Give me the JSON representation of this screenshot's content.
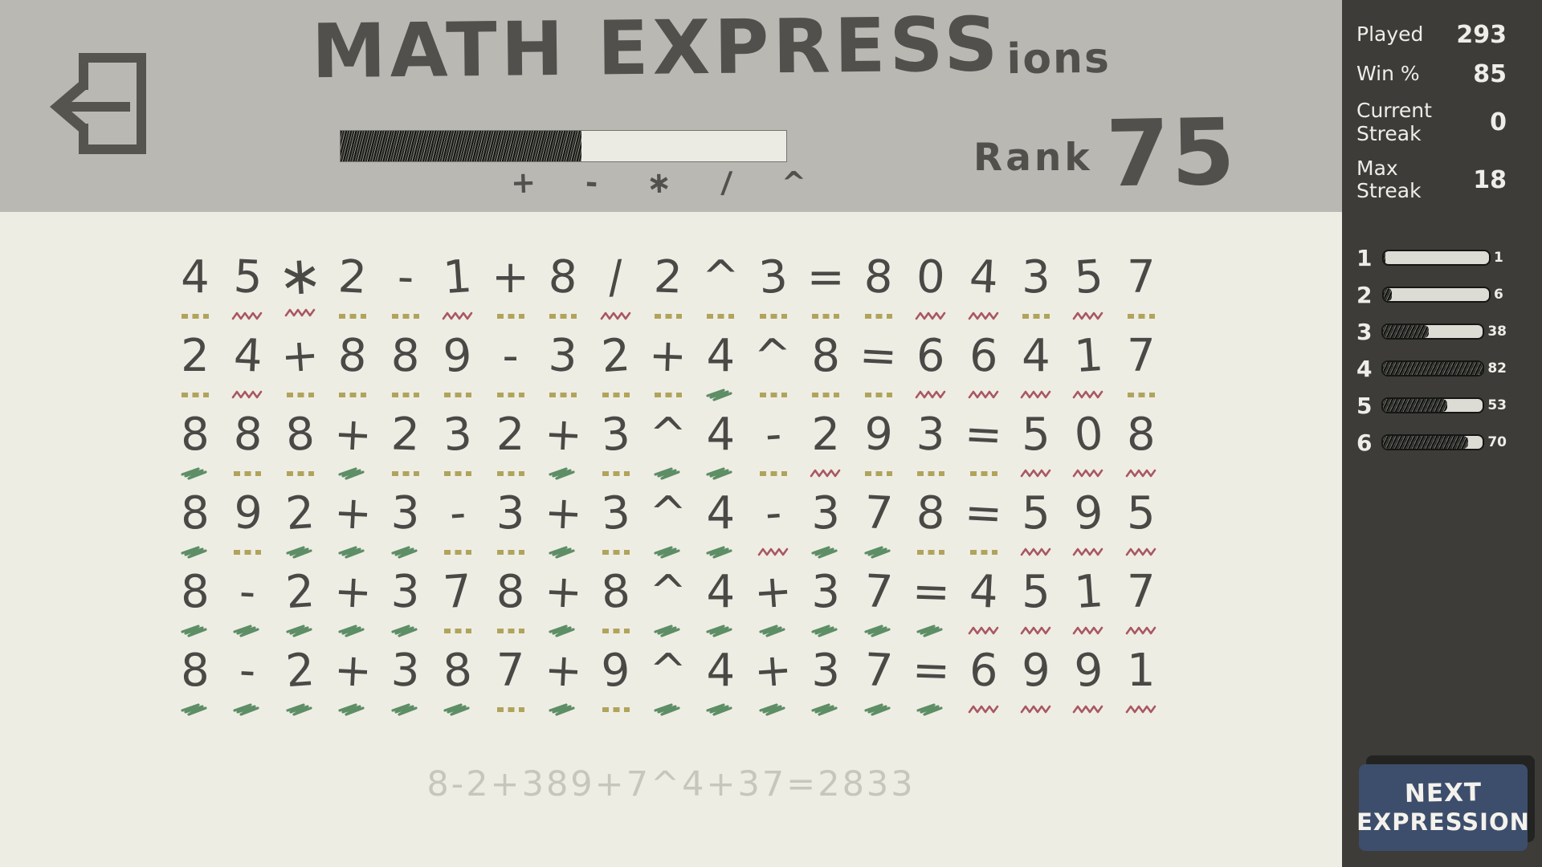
{
  "header": {
    "title_main": "MATH EXPRESS",
    "title_suffix": "ions",
    "rank_label": "Rank",
    "rank_value": "75",
    "progress_percent": 54,
    "operators": [
      "+",
      "-",
      "*",
      "/",
      "^"
    ]
  },
  "stats": [
    {
      "label": "Played",
      "value": "293"
    },
    {
      "label": "Win %",
      "value": "85"
    },
    {
      "label": "Current Streak",
      "value": "0"
    },
    {
      "label": "Max Streak",
      "value": "18"
    }
  ],
  "distribution": {
    "max": 82,
    "rows": [
      {
        "guess": "1",
        "count": 1
      },
      {
        "guess": "2",
        "count": 6
      },
      {
        "guess": "3",
        "count": 38
      },
      {
        "guess": "4",
        "count": 82
      },
      {
        "guess": "5",
        "count": 53
      },
      {
        "guess": "6",
        "count": 70
      }
    ]
  },
  "guesses": [
    {
      "expr": "45*2-1+8/2^3=804357",
      "marks": "yrryyryyryyyyyrryry"
    },
    {
      "expr": "24+889-32+4^8=66417",
      "marks": "yryyyyyyyygyyyrrrry"
    },
    {
      "expr": "888+232+3^4-293=508",
      "marks": "gyygyyygyggyryyyrrr"
    },
    {
      "expr": "892+3-3+3^4-378=595",
      "marks": "gygggyygyggrggyyrrr"
    },
    {
      "expr": "8-2+378+8^4+37=4517",
      "marks": "gggggyygyggggggrrrr"
    },
    {
      "expr": "8-2+387+9^4+37=6991",
      "marks": "ggggggygyggggggrrrr"
    }
  ],
  "mark_legend": {
    "g": "correct",
    "y": "present",
    "r": "absent"
  },
  "solution_text": "8-2+389+7^4+37=2833",
  "next_button": {
    "line1": "NEXT",
    "line2": "EXPRESSION"
  },
  "colors": {
    "correct": "#5d8e66",
    "present": "#b0a45c",
    "absent": "#a85862",
    "ink": "#52504c",
    "header_bg": "#b9b8b2",
    "main_bg": "#eeede4",
    "sidebar_bg": "#3e3c38",
    "sidebar_text": "#efede7",
    "button_blue": "#3d4e6c",
    "button_shadow": "#232321",
    "ghost_text": "#c7c6bc",
    "bar_bg": "#dcdbd4"
  }
}
